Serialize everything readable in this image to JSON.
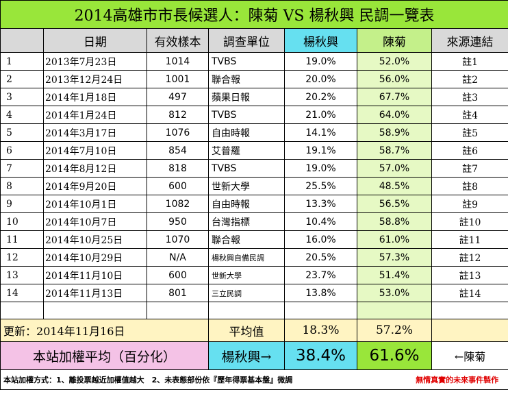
{
  "title": "2014高雄市市長候選人：陳菊 VS 楊秋興 民調一覽表",
  "headers": {
    "date": "日期",
    "sample": "有效樣本",
    "unit": "調查單位",
    "yang": "楊秋興",
    "chen": "陳菊",
    "source": "來源連結"
  },
  "rows": [
    {
      "idx": "1",
      "date": "2013年7月23日",
      "sample": "1014",
      "unit": "TVBS",
      "yang": "19.0%",
      "chen": "52.0%",
      "note": "註1"
    },
    {
      "idx": "2",
      "date": "2013年12月24日",
      "sample": "1001",
      "unit": "聯合報",
      "yang": "20.0%",
      "chen": "56.0%",
      "note": "註2"
    },
    {
      "idx": "3",
      "date": "2014年1月18日",
      "sample": "497",
      "unit": "蘋果日報",
      "yang": "20.2%",
      "chen": "67.7%",
      "note": "註3"
    },
    {
      "idx": "4",
      "date": "2014年1月24日",
      "sample": "812",
      "unit": "TVBS",
      "yang": "21.0%",
      "chen": "64.0%",
      "note": "註4"
    },
    {
      "idx": "5",
      "date": "2014年3月17日",
      "sample": "1076",
      "unit": "自由時報",
      "yang": "14.1%",
      "chen": "58.9%",
      "note": "註5"
    },
    {
      "idx": "6",
      "date": "2014年7月10日",
      "sample": "854",
      "unit": "艾普羅",
      "yang": "19.1%",
      "chen": "58.7%",
      "note": "註6"
    },
    {
      "idx": "7",
      "date": "2014年8月12日",
      "sample": "818",
      "unit": "TVBS",
      "yang": "19.0%",
      "chen": "57.0%",
      "note": "註7"
    },
    {
      "idx": "8",
      "date": "2014年9月20日",
      "sample": "600",
      "unit": "世新大學",
      "yang": "25.5%",
      "chen": "48.5%",
      "note": "註8"
    },
    {
      "idx": "9",
      "date": "2014年10月1日",
      "sample": "1082",
      "unit": "自由時報",
      "yang": "13.3%",
      "chen": "56.5%",
      "note": "註9"
    },
    {
      "idx": "10",
      "date": "2014年10月7日",
      "sample": "950",
      "unit": "台灣指標",
      "yang": "10.4%",
      "chen": "58.8%",
      "note": "註10"
    },
    {
      "idx": "11",
      "date": "2014年10月25日",
      "sample": "1070",
      "unit": "聯合報",
      "yang": "16.0%",
      "chen": "61.0%",
      "note": "註11"
    },
    {
      "idx": "12",
      "date": "2014年10月29日",
      "sample": "N/A",
      "unit": "楊秋興自備民調",
      "yang": "20.5%",
      "chen": "57.3%",
      "note": "註12",
      "small": true
    },
    {
      "idx": "13",
      "date": "2014年11月10日",
      "sample": "600",
      "unit": "世新大學",
      "yang": "23.7%",
      "chen": "51.4%",
      "note": "註13",
      "small": true
    },
    {
      "idx": "14",
      "date": "2014年11月13日",
      "sample": "801",
      "unit": "三立民調",
      "yang": "13.8%",
      "chen": "53.0%",
      "note": "註14",
      "small": true
    }
  ],
  "avg": {
    "update_label": "更新：",
    "update_date": "2014年11月16日",
    "label": "平均值",
    "yang": "18.3%",
    "chen": "57.2%"
  },
  "weighted": {
    "label": "本站加權平均（百分化）",
    "yang_label": "楊秋興→",
    "yang": "38.4%",
    "chen": "61.6%",
    "chen_label": "←陳菊"
  },
  "footer": {
    "method": "本站加權方式：1、離投票越近加權值越大　2、未表態部份依『歷年得票基本盤』微調",
    "credit": "無情真實的未來事件製作"
  }
}
